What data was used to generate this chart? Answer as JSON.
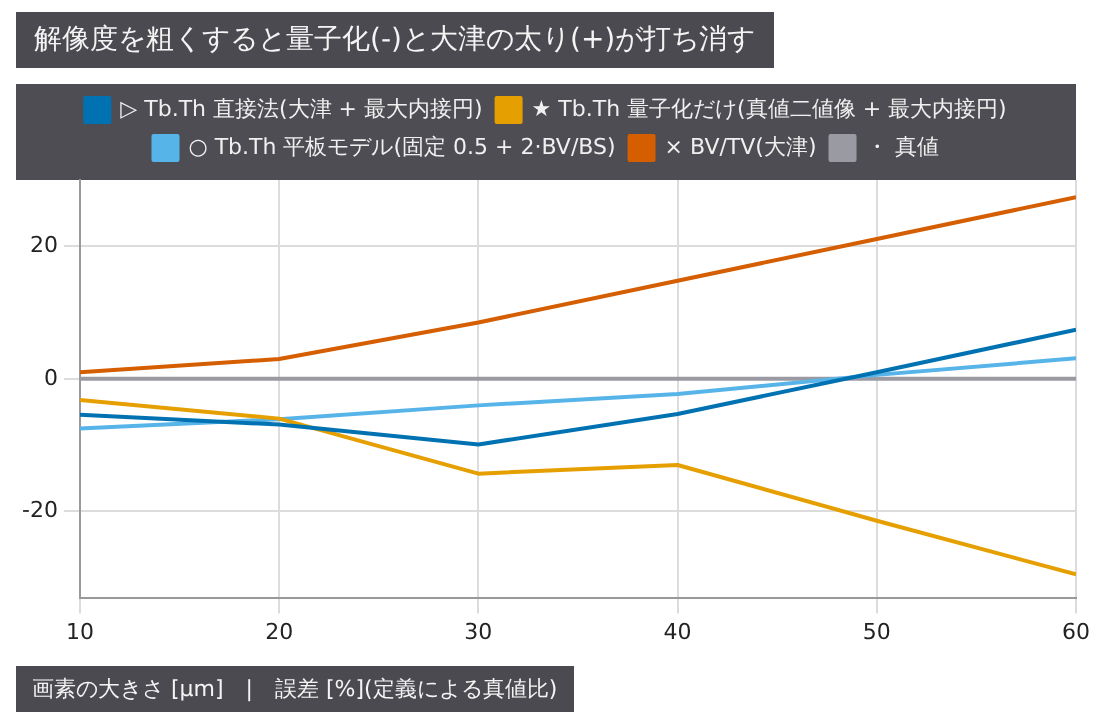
{
  "chart_data": {
    "type": "line",
    "title": "解像度を粗くすると量子化(-)と大津の太り(+)が打ち消す",
    "x": [
      10,
      20,
      30,
      40,
      50,
      60
    ],
    "series": [
      {
        "name": "▷ Tb.Th 直接法(大津 + 最大内接円)",
        "color": "#0072b2",
        "values": [
          -5.4,
          -6.9,
          -9.9,
          -5.3,
          1,
          7.4
        ]
      },
      {
        "name": "★ Tb.Th 量子化だけ(真値二値像 + 最大内接円)",
        "color": "#e69f00",
        "values": [
          -3.2,
          -6.0,
          -14.3,
          -13.0,
          -21.4,
          -29.5
        ]
      },
      {
        "name": "○ Tb.Th 平板モデル(固定 0.5 + 2·BV/BS)",
        "color": "#56b4e9",
        "values": [
          -7.5,
          -6.1,
          -4.0,
          -2.3,
          0.6,
          3.1
        ]
      },
      {
        "name": "× BV/TV(大津)",
        "color": "#d55e00",
        "values": [
          1.0,
          3.0,
          8.5,
          14.8,
          21.1,
          27.4
        ]
      },
      {
        "name": "・ 真値",
        "color": "#9a9aa2",
        "values": [
          0,
          0,
          0,
          0,
          0,
          0
        ]
      }
    ],
    "xlim": [
      10,
      60
    ],
    "xticks": [
      10,
      20,
      30,
      40,
      50,
      60
    ],
    "ylim": [
      -33,
      30
    ],
    "yticks": [
      -20,
      0,
      20
    ],
    "grid": true,
    "legend": "top",
    "marker": "none",
    "line_style": "solid",
    "annotations": [
      "画素の大きさ [μm]　|　誤差 [%](定義による真値比)"
    ]
  }
}
